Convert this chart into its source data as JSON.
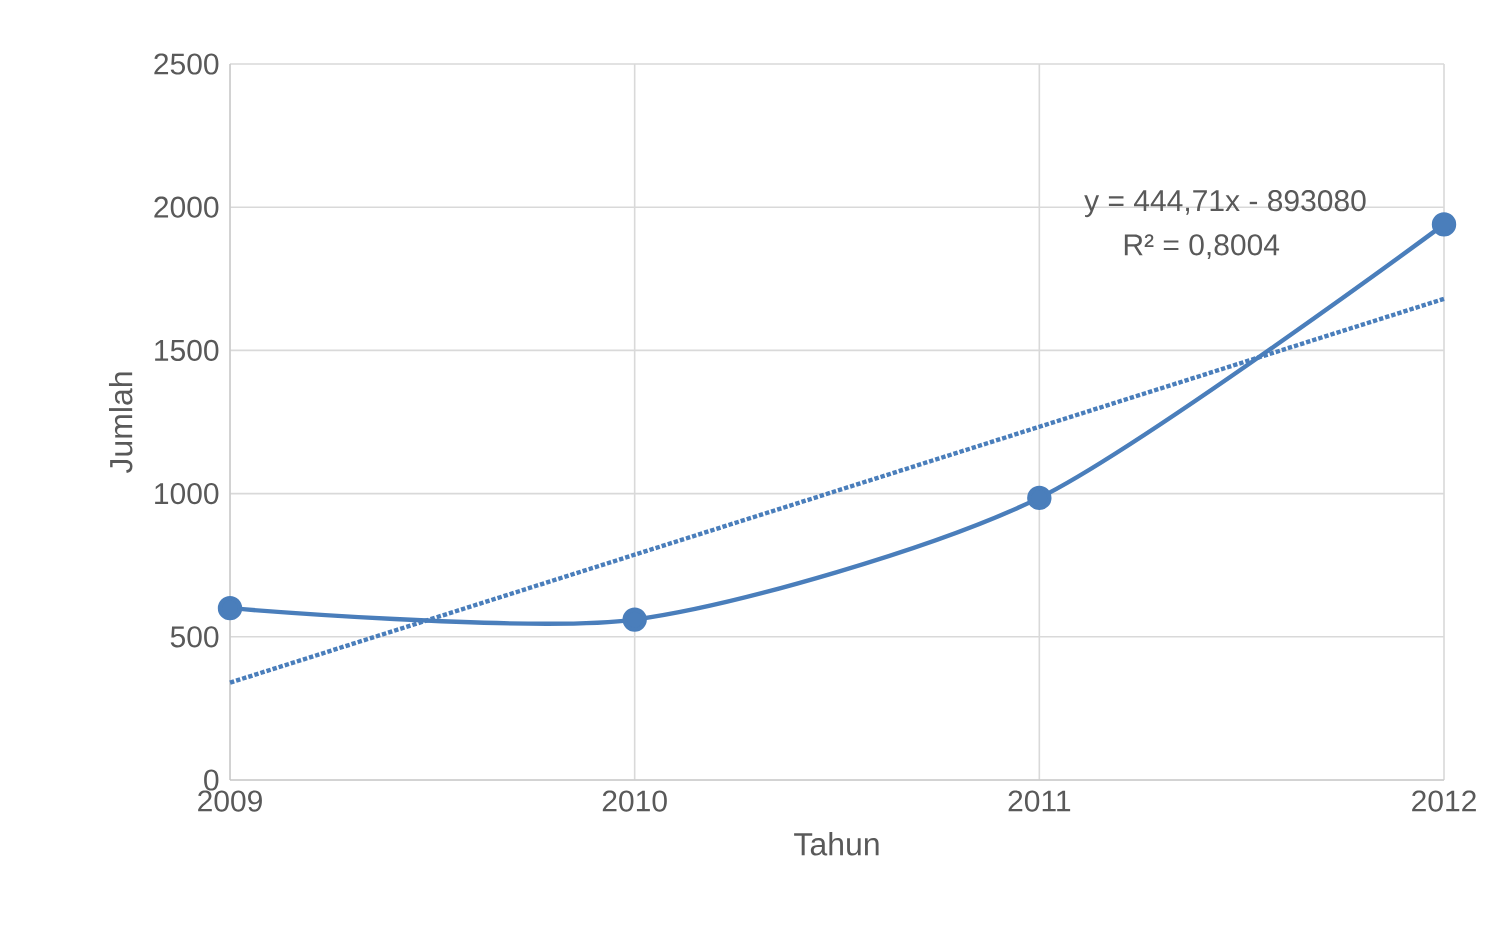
{
  "chart_data": {
    "type": "line",
    "xlabel": "Tahun",
    "ylabel": "Jumlah",
    "x": [
      2009,
      2010,
      2011,
      2012
    ],
    "series": [
      {
        "color": "#4a7ebb",
        "values": [
          600,
          560,
          985,
          1940
        ],
        "marker": "circle",
        "line_style": "solid"
      },
      {
        "color": "#4a7ebb",
        "x": [
          2009,
          2012
        ],
        "values": [
          340,
          1680
        ],
        "marker": "none",
        "line_style": "dotted"
      }
    ],
    "xlim": [
      2009,
      2012
    ],
    "xticks": [
      2009,
      2010,
      2011,
      2012
    ],
    "ylim": [
      0,
      2500
    ],
    "yticks": [
      0,
      500,
      1000,
      1500,
      2000,
      2500
    ],
    "grid": true,
    "annotations": [
      "y = 444,71x - 893080",
      "R² = 0,8004"
    ]
  }
}
